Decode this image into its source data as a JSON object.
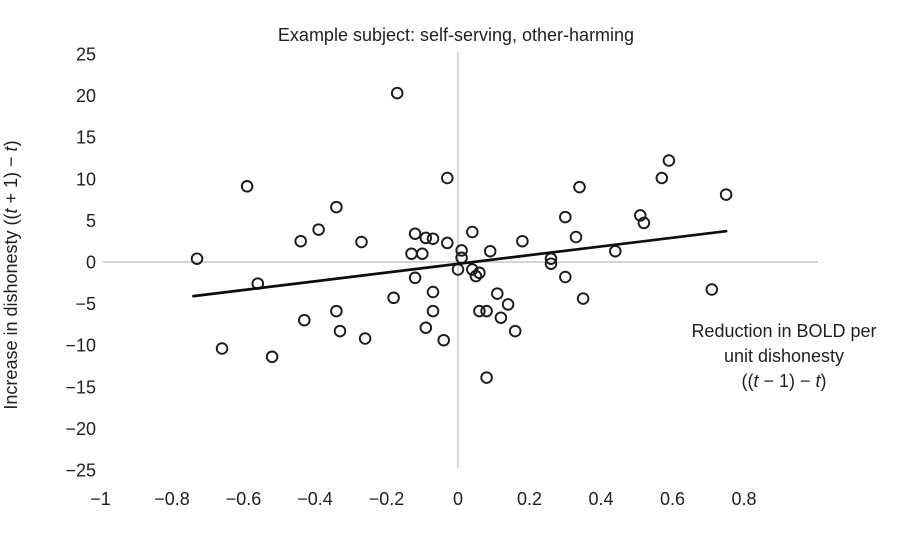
{
  "chart_data": {
    "type": "scatter",
    "title": "Example subject: self-serving, other-harming",
    "xlabel": "Reduction in BOLD per unit dishonesty ((t − 1) − t)",
    "ylabel": "Increase in dishonesty ((t + 1) − t)",
    "ylabel_segments": [
      {
        "t": "Increase in dishonesty ((",
        "i": false
      },
      {
        "t": "t",
        "i": true
      },
      {
        "t": " + 1) − ",
        "i": false
      },
      {
        "t": "t",
        "i": true
      },
      {
        "t": ")",
        "i": false
      }
    ],
    "annotation_lines": [
      [
        {
          "t": "Reduction in BOLD per",
          "i": false
        }
      ],
      [
        {
          "t": "unit dishonesty",
          "i": false
        }
      ],
      [
        {
          "t": "((",
          "i": false
        },
        {
          "t": "t",
          "i": true
        },
        {
          "t": " − 1) − ",
          "i": false
        },
        {
          "t": "t",
          "i": true
        },
        {
          "t": ")",
          "i": false
        }
      ]
    ],
    "xlim": [
      -1.05,
      0.95
    ],
    "ylim": [
      -25,
      25
    ],
    "x_ticks": [
      -1,
      -0.8,
      -0.6,
      -0.4,
      -0.2,
      0,
      0.2,
      0.4,
      0.6,
      0.8
    ],
    "x_tick_labels": [
      "−1",
      "−0.8",
      "−0.6",
      "−0.4",
      "−0.2",
      "0",
      "0.2",
      "0.4",
      "0.6",
      "0.8"
    ],
    "y_ticks": [
      25,
      20,
      15,
      10,
      5,
      0,
      -5,
      -10,
      -15,
      -20,
      -25
    ],
    "y_tick_labels": [
      "25",
      "20",
      "15",
      "10",
      "5",
      "0",
      "−5",
      "−10",
      "−15",
      "−20",
      "−25"
    ],
    "grid": "zero-lines-only",
    "legend": "none",
    "marker": "open-circle",
    "points": [
      [
        -0.73,
        0.4
      ],
      [
        -0.66,
        -10.4
      ],
      [
        -0.59,
        9.1
      ],
      [
        -0.56,
        -2.6
      ],
      [
        -0.52,
        -11.4
      ],
      [
        -0.44,
        2.5
      ],
      [
        -0.43,
        -7.0
      ],
      [
        -0.39,
        3.9
      ],
      [
        -0.34,
        6.6
      ],
      [
        -0.34,
        -5.9
      ],
      [
        -0.33,
        -8.3
      ],
      [
        -0.27,
        2.4
      ],
      [
        -0.26,
        -9.2
      ],
      [
        -0.18,
        -4.3
      ],
      [
        -0.17,
        20.3
      ],
      [
        -0.13,
        1.0
      ],
      [
        -0.12,
        3.4
      ],
      [
        -0.12,
        -1.9
      ],
      [
        -0.1,
        1.0
      ],
      [
        -0.09,
        2.9
      ],
      [
        -0.07,
        2.8
      ],
      [
        -0.07,
        -3.6
      ],
      [
        -0.07,
        -5.9
      ],
      [
        -0.09,
        -7.9
      ],
      [
        -0.04,
        -9.4
      ],
      [
        -0.03,
        2.3
      ],
      [
        -0.03,
        10.1
      ],
      [
        0.01,
        1.4
      ],
      [
        0.01,
        0.5
      ],
      [
        0.0,
        -0.9
      ],
      [
        0.04,
        3.6
      ],
      [
        0.04,
        -0.9
      ],
      [
        0.05,
        -1.7
      ],
      [
        0.06,
        -1.3
      ],
      [
        0.09,
        1.3
      ],
      [
        0.06,
        -5.9
      ],
      [
        0.08,
        -5.9
      ],
      [
        0.08,
        -13.9
      ],
      [
        0.11,
        -3.8
      ],
      [
        0.14,
        -5.1
      ],
      [
        0.12,
        -6.7
      ],
      [
        0.16,
        -8.3
      ],
      [
        0.18,
        2.5
      ],
      [
        0.26,
        0.4
      ],
      [
        0.26,
        -0.2
      ],
      [
        0.3,
        -1.8
      ],
      [
        0.3,
        5.4
      ],
      [
        0.33,
        3.0
      ],
      [
        0.34,
        9.0
      ],
      [
        0.35,
        -4.4
      ],
      [
        0.44,
        1.3
      ],
      [
        0.51,
        5.6
      ],
      [
        0.52,
        4.7
      ],
      [
        0.57,
        10.1
      ],
      [
        0.59,
        12.2
      ],
      [
        0.71,
        -3.3
      ],
      [
        0.75,
        8.1
      ]
    ],
    "trendline": {
      "x1": -0.74,
      "y1": -4.1,
      "x2": 0.75,
      "y2": 3.7
    }
  },
  "styles": {
    "background": "#ffffff",
    "text_color": "#1f1f1f",
    "point_stroke": "#1a1a1a",
    "trend_color": "#0d0d0d",
    "grid_color": "#c6c6c6"
  }
}
